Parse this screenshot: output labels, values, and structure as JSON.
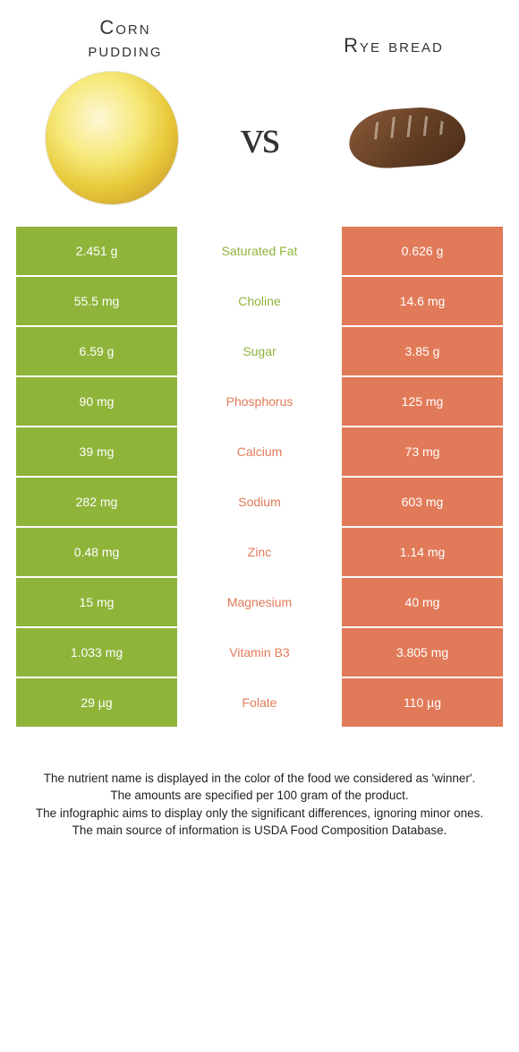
{
  "colors": {
    "left": "#8fb43a",
    "right": "#e17a58",
    "leftLabel": "#8fb43a",
    "rightLabel": "#e17a58"
  },
  "foodLeft": {
    "titleLine1": "Corn",
    "titleLine2": "pudding"
  },
  "foodRight": {
    "title": "Rye bread"
  },
  "vs": "vs",
  "rows": [
    {
      "left": "2.451 g",
      "label": "Saturated Fat",
      "right": "0.626 g",
      "winner": "left"
    },
    {
      "left": "55.5 mg",
      "label": "Choline",
      "right": "14.6 mg",
      "winner": "left"
    },
    {
      "left": "6.59 g",
      "label": "Sugar",
      "right": "3.85 g",
      "winner": "left"
    },
    {
      "left": "90 mg",
      "label": "Phosphorus",
      "right": "125 mg",
      "winner": "right"
    },
    {
      "left": "39 mg",
      "label": "Calcium",
      "right": "73 mg",
      "winner": "right"
    },
    {
      "left": "282 mg",
      "label": "Sodium",
      "right": "603 mg",
      "winner": "right"
    },
    {
      "left": "0.48 mg",
      "label": "Zinc",
      "right": "1.14 mg",
      "winner": "right"
    },
    {
      "left": "15 mg",
      "label": "Magnesium",
      "right": "40 mg",
      "winner": "right"
    },
    {
      "left": "1.033 mg",
      "label": "Vitamin B3",
      "right": "3.805 mg",
      "winner": "right"
    },
    {
      "left": "29 µg",
      "label": "Folate",
      "right": "110 µg",
      "winner": "right"
    }
  ],
  "footer": {
    "l1": "The nutrient name is displayed in the color of the food we considered as 'winner'.",
    "l2": "The amounts are specified per 100 gram of the product.",
    "l3": "The infographic aims to display only the significant differences, ignoring minor ones.",
    "l4": "The main source of information is USDA Food Composition Database."
  }
}
